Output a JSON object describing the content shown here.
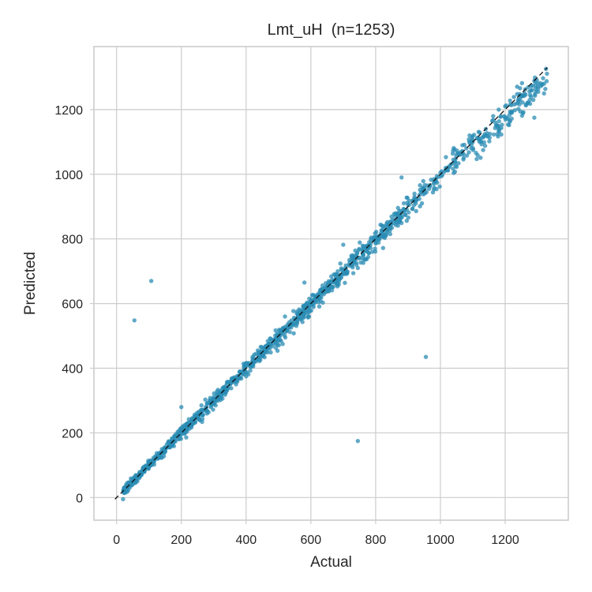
{
  "chart_data": {
    "type": "scatter",
    "title": "Lmt_uH  (n=1253)",
    "xlabel": "Actual",
    "ylabel": "Predicted",
    "xlim": [
      -70,
      1395
    ],
    "ylim": [
      -70,
      1395
    ],
    "xticks": [
      0,
      200,
      400,
      600,
      800,
      1000,
      1200
    ],
    "yticks": [
      0,
      200,
      400,
      600,
      800,
      1000,
      1200
    ],
    "grid": true,
    "point_color": "#2b8cb4",
    "point_alpha": 0.75,
    "reference_line": {
      "type": "y=x",
      "from": -5,
      "to": 1330,
      "style": "dashed",
      "color": "#111111"
    },
    "n": 1253,
    "outliers": [
      {
        "x": 55,
        "y": 548
      },
      {
        "x": 107,
        "y": 670
      },
      {
        "x": 745,
        "y": 175
      },
      {
        "x": 955,
        "y": 435
      },
      {
        "x": 20,
        "y": -5
      }
    ],
    "trend_points": [
      {
        "x": 25,
        "y": 30
      },
      {
        "x": 40,
        "y": 45
      },
      {
        "x": 60,
        "y": 68
      },
      {
        "x": 80,
        "y": 85
      },
      {
        "x": 100,
        "y": 105
      },
      {
        "x": 120,
        "y": 128
      },
      {
        "x": 140,
        "y": 150
      },
      {
        "x": 160,
        "y": 172
      },
      {
        "x": 180,
        "y": 190
      },
      {
        "x": 200,
        "y": 215
      },
      {
        "x": 200,
        "y": 280
      },
      {
        "x": 220,
        "y": 230
      },
      {
        "x": 240,
        "y": 250
      },
      {
        "x": 260,
        "y": 270
      },
      {
        "x": 280,
        "y": 290
      },
      {
        "x": 300,
        "y": 305
      },
      {
        "x": 320,
        "y": 330
      },
      {
        "x": 340,
        "y": 350
      },
      {
        "x": 360,
        "y": 368
      },
      {
        "x": 380,
        "y": 390
      },
      {
        "x": 400,
        "y": 408
      },
      {
        "x": 420,
        "y": 430
      },
      {
        "x": 440,
        "y": 448
      },
      {
        "x": 460,
        "y": 468
      },
      {
        "x": 480,
        "y": 485
      },
      {
        "x": 500,
        "y": 505
      },
      {
        "x": 520,
        "y": 528
      },
      {
        "x": 540,
        "y": 548
      },
      {
        "x": 560,
        "y": 565
      },
      {
        "x": 580,
        "y": 590
      },
      {
        "x": 600,
        "y": 605
      },
      {
        "x": 580,
        "y": 665
      },
      {
        "x": 620,
        "y": 628
      },
      {
        "x": 640,
        "y": 645
      },
      {
        "x": 660,
        "y": 668
      },
      {
        "x": 680,
        "y": 690
      },
      {
        "x": 700,
        "y": 705
      },
      {
        "x": 700,
        "y": 782
      },
      {
        "x": 720,
        "y": 728
      },
      {
        "x": 740,
        "y": 745
      },
      {
        "x": 760,
        "y": 770
      },
      {
        "x": 780,
        "y": 790
      },
      {
        "x": 800,
        "y": 805
      },
      {
        "x": 820,
        "y": 825
      },
      {
        "x": 840,
        "y": 845
      },
      {
        "x": 860,
        "y": 870
      },
      {
        "x": 880,
        "y": 880
      },
      {
        "x": 880,
        "y": 990
      },
      {
        "x": 900,
        "y": 905
      },
      {
        "x": 920,
        "y": 925
      },
      {
        "x": 940,
        "y": 945
      },
      {
        "x": 960,
        "y": 965
      },
      {
        "x": 980,
        "y": 985
      },
      {
        "x": 1000,
        "y": 1005
      },
      {
        "x": 1020,
        "y": 1020
      },
      {
        "x": 1040,
        "y": 1045
      },
      {
        "x": 1060,
        "y": 1060
      },
      {
        "x": 1080,
        "y": 1080
      },
      {
        "x": 1100,
        "y": 1100
      },
      {
        "x": 1120,
        "y": 1110
      },
      {
        "x": 1140,
        "y": 1140
      },
      {
        "x": 1160,
        "y": 1165
      },
      {
        "x": 1180,
        "y": 1200
      },
      {
        "x": 1200,
        "y": 1210
      },
      {
        "x": 1220,
        "y": 1190
      },
      {
        "x": 1240,
        "y": 1230
      },
      {
        "x": 1260,
        "y": 1250
      },
      {
        "x": 1280,
        "y": 1240
      },
      {
        "x": 1300,
        "y": 1270
      },
      {
        "x": 1320,
        "y": 1280
      },
      {
        "x": 1290,
        "y": 1175
      },
      {
        "x": 1320,
        "y": 1250
      }
    ]
  }
}
